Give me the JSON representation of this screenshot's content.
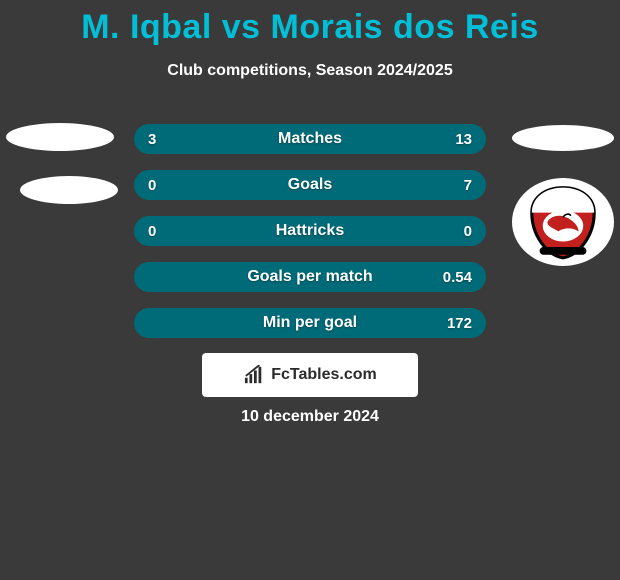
{
  "colors": {
    "background": "#3a3a3a",
    "title": "#00bfd6",
    "subtitle_text": "#ffffff",
    "badge_light": "#ffffff",
    "badge_right2_bg": "#ffffff",
    "stat_row_bg": "#006b78",
    "stat_text": "#ffffff",
    "branding_bg": "#ffffff",
    "branding_text": "#2b2b2b",
    "date_text": "#ffffff",
    "crest_red": "#c21f1f",
    "crest_black": "#000000",
    "crest_white": "#ffffff"
  },
  "typography": {
    "title_fontsize": 34,
    "subtitle_fontsize": 16,
    "stat_label_fontsize": 16,
    "stat_value_fontsize": 15,
    "branding_fontsize": 16,
    "date_fontsize": 16
  },
  "title": "M. Iqbal vs Morais dos Reis",
  "subtitle": "Club competitions, Season 2024/2025",
  "stats": {
    "type": "comparison-bars",
    "rows": [
      {
        "label": "Matches",
        "left": "3",
        "right": "13"
      },
      {
        "label": "Goals",
        "left": "0",
        "right": "7"
      },
      {
        "label": "Hattricks",
        "left": "0",
        "right": "0"
      },
      {
        "label": "Goals per match",
        "left": "",
        "right": "0.54"
      },
      {
        "label": "Min per goal",
        "left": "",
        "right": "172"
      }
    ]
  },
  "branding": "FcTables.com",
  "date": "10 december 2024"
}
